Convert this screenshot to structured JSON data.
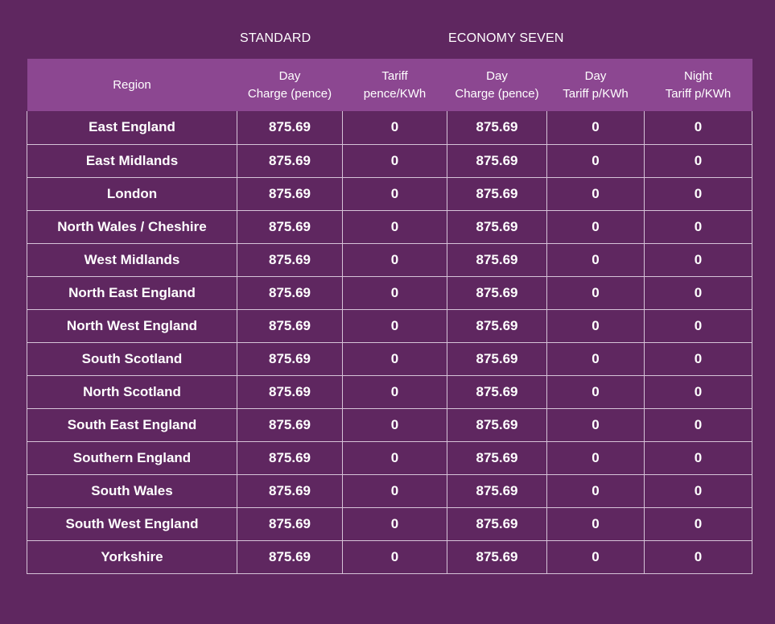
{
  "groups": {
    "standard": "STANDARD",
    "economy": "ECONOMY SEVEN"
  },
  "headers": {
    "region": "Region",
    "std_day_line1": "Day",
    "std_day_line2": "Charge (pence)",
    "std_tariff_line1": "Tariff",
    "std_tariff_line2": "pence/KWh",
    "e7_day_line1": "Day",
    "e7_day_line2": "Charge (pence)",
    "e7_daytariff_line1": "Day",
    "e7_daytariff_line2": "Tariff p/KWh",
    "e7_night_line1": "Night",
    "e7_night_line2": "Tariff p/KWh"
  },
  "rows": [
    {
      "region": "East England",
      "std_day": "875.69",
      "std_tariff": "0",
      "e7_day": "875.69",
      "e7_day_tariff": "0",
      "e7_night_tariff": "0"
    },
    {
      "region": "East Midlands",
      "std_day": "875.69",
      "std_tariff": "0",
      "e7_day": "875.69",
      "e7_day_tariff": "0",
      "e7_night_tariff": "0"
    },
    {
      "region": "London",
      "std_day": "875.69",
      "std_tariff": "0",
      "e7_day": "875.69",
      "e7_day_tariff": "0",
      "e7_night_tariff": "0"
    },
    {
      "region": "North Wales / Cheshire",
      "std_day": "875.69",
      "std_tariff": "0",
      "e7_day": "875.69",
      "e7_day_tariff": "0",
      "e7_night_tariff": "0"
    },
    {
      "region": "West Midlands",
      "std_day": "875.69",
      "std_tariff": "0",
      "e7_day": "875.69",
      "e7_day_tariff": "0",
      "e7_night_tariff": "0"
    },
    {
      "region": "North East England",
      "std_day": "875.69",
      "std_tariff": "0",
      "e7_day": "875.69",
      "e7_day_tariff": "0",
      "e7_night_tariff": "0"
    },
    {
      "region": "North West England",
      "std_day": "875.69",
      "std_tariff": "0",
      "e7_day": "875.69",
      "e7_day_tariff": "0",
      "e7_night_tariff": "0"
    },
    {
      "region": "South Scotland",
      "std_day": "875.69",
      "std_tariff": "0",
      "e7_day": "875.69",
      "e7_day_tariff": "0",
      "e7_night_tariff": "0"
    },
    {
      "region": "North Scotland",
      "std_day": "875.69",
      "std_tariff": "0",
      "e7_day": "875.69",
      "e7_day_tariff": "0",
      "e7_night_tariff": "0"
    },
    {
      "region": "South East England",
      "std_day": "875.69",
      "std_tariff": "0",
      "e7_day": "875.69",
      "e7_day_tariff": "0",
      "e7_night_tariff": "0"
    },
    {
      "region": "Southern England",
      "std_day": "875.69",
      "std_tariff": "0",
      "e7_day": "875.69",
      "e7_day_tariff": "0",
      "e7_night_tariff": "0"
    },
    {
      "region": "South Wales",
      "std_day": "875.69",
      "std_tariff": "0",
      "e7_day": "875.69",
      "e7_day_tariff": "0",
      "e7_night_tariff": "0"
    },
    {
      "region": "South West England",
      "std_day": "875.69",
      "std_tariff": "0",
      "e7_day": "875.69",
      "e7_day_tariff": "0",
      "e7_night_tariff": "0"
    },
    {
      "region": "Yorkshire",
      "std_day": "875.69",
      "std_tariff": "0",
      "e7_day": "875.69",
      "e7_day_tariff": "0",
      "e7_night_tariff": "0"
    }
  ],
  "colors": {
    "background": "#5f2760",
    "header_band": "#8c4791",
    "grid_line": "#d6c3d8",
    "text": "#ffffff"
  }
}
